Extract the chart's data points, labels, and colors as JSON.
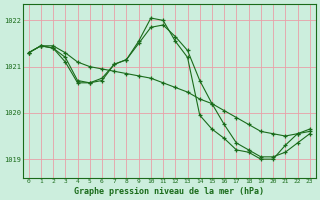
{
  "title": "Graphe pression niveau de la mer (hPa)",
  "bg_color": "#cceedd",
  "grid_color": "#e8a0a8",
  "line_color": "#1a6b1a",
  "xlim": [
    -0.5,
    23.5
  ],
  "ylim": [
    1018.6,
    1022.35
  ],
  "yticks": [
    1019,
    1020,
    1021,
    1022
  ],
  "xticks": [
    0,
    1,
    2,
    3,
    4,
    5,
    6,
    7,
    8,
    9,
    10,
    11,
    12,
    13,
    14,
    15,
    16,
    17,
    18,
    19,
    20,
    21,
    22,
    23
  ],
  "line1_x": [
    0,
    1,
    2,
    3,
    4,
    5,
    6,
    7,
    8,
    9,
    10,
    11,
    12,
    13,
    14,
    15,
    16,
    17,
    18,
    19,
    20,
    21,
    22,
    23
  ],
  "line1_y": [
    1021.3,
    1021.45,
    1021.45,
    1021.3,
    1021.1,
    1021.0,
    1020.95,
    1020.9,
    1020.85,
    1020.8,
    1020.75,
    1020.65,
    1020.55,
    1020.45,
    1020.3,
    1020.2,
    1020.05,
    1019.9,
    1019.75,
    1019.6,
    1019.55,
    1019.5,
    1019.55,
    1019.6
  ],
  "line2_x": [
    0,
    1,
    2,
    3,
    4,
    5,
    6,
    7,
    8,
    9,
    10,
    11,
    12,
    13,
    14,
    15,
    16,
    17,
    18,
    19,
    20,
    21,
    22,
    23
  ],
  "line2_y": [
    1021.3,
    1021.45,
    1021.4,
    1021.2,
    1020.7,
    1020.65,
    1020.75,
    1021.05,
    1021.15,
    1021.5,
    1021.85,
    1021.9,
    1021.65,
    1021.35,
    1020.7,
    1020.2,
    1019.75,
    1019.35,
    1019.2,
    1019.05,
    1019.05,
    1019.15,
    1019.35,
    1019.55
  ],
  "line3_x": [
    0,
    1,
    2,
    3,
    4,
    5,
    6,
    7,
    8,
    9,
    10,
    11,
    12,
    13,
    14,
    15,
    16,
    17,
    18,
    19,
    20,
    21,
    22,
    23
  ],
  "line3_y": [
    1021.3,
    1021.45,
    1021.4,
    1021.1,
    1020.65,
    1020.65,
    1020.7,
    1021.05,
    1021.15,
    1021.55,
    1022.05,
    1022.0,
    1021.55,
    1021.2,
    1019.95,
    1019.65,
    1019.45,
    1019.2,
    1019.15,
    1019.0,
    1019.0,
    1019.3,
    1019.55,
    1019.65
  ]
}
